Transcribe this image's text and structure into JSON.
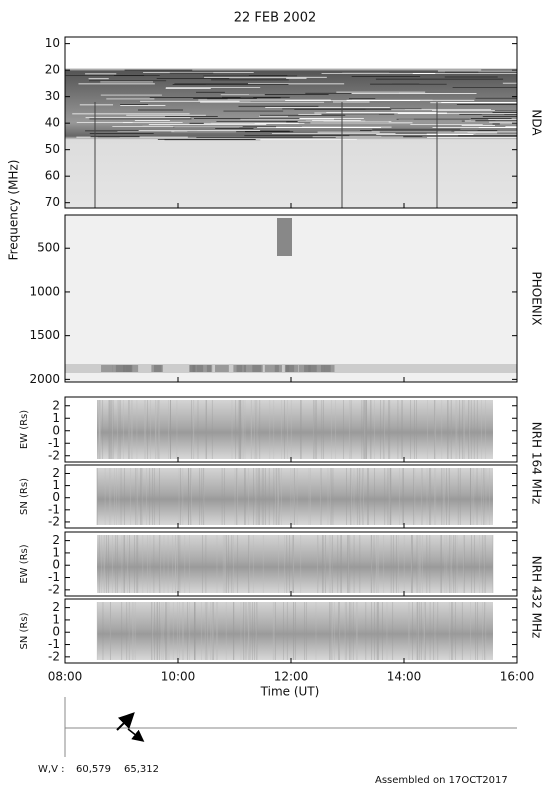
{
  "title": "22 FEB 2002",
  "y_axis_label": "Frequency (MHz)",
  "panels": [
    {
      "label": "NDA",
      "ylim": [
        7.5,
        72
      ],
      "yticks": [
        10,
        20,
        30,
        40,
        50,
        60,
        70
      ]
    },
    {
      "label": "PHOENIX",
      "ylim": [
        120,
        2030
      ],
      "yticks": [
        500,
        1000,
        1500,
        2000
      ]
    },
    {
      "y_label": "EW (Rs)",
      "ylim": [
        -2.5,
        2.7
      ],
      "yticks": [
        2,
        1,
        0,
        -1,
        -2
      ]
    },
    {
      "y_label": "SN (Rs)",
      "ylim": [
        -2.5,
        2.7
      ],
      "yticks": [
        2,
        1,
        0,
        -1,
        -2
      ]
    },
    {
      "y_label": "EW (Rs)",
      "ylim": [
        -2.5,
        2.7
      ],
      "yticks": [
        2,
        1,
        0,
        -1,
        -2
      ]
    },
    {
      "y_label": "SN (Rs)",
      "ylim": [
        -2.5,
        2.7
      ],
      "yticks": [
        2,
        1,
        0,
        -1,
        -2
      ]
    }
  ],
  "instrument_labels": [
    "NRH 164 MHz",
    "NRH 432 MHz"
  ],
  "x_axis": {
    "label": "Time (UT)",
    "xlim": [
      8,
      16
    ],
    "xticks": [
      {
        "value": 8,
        "label": "08:00"
      },
      {
        "value": 10,
        "label": "10:00"
      },
      {
        "value": 12,
        "label": "12:00"
      },
      {
        "value": 14,
        "label": "14:00"
      },
      {
        "value": 16,
        "label": "16:00"
      }
    ]
  },
  "wv_label": "W,V :",
  "wv_values": [
    "60,579",
    "65,312"
  ],
  "footer": "Assembled on 17OCT2017"
}
